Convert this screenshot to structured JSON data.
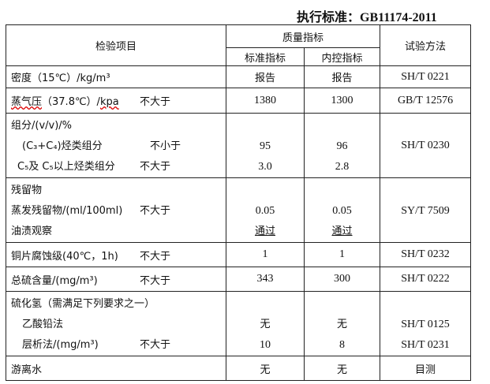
{
  "title": "执行标准：GB11174-2011",
  "header": {
    "item": "检验项目",
    "quality": "质量指标",
    "standard": "标准指标",
    "internal": "内控指标",
    "method": "试验方法"
  },
  "rows": {
    "density": {
      "label": "密度（15℃）/kg/m³",
      "standard": "报告",
      "internal": "报告",
      "method": "SH/T 0221"
    },
    "vapor": {
      "label_a": "蒸气压",
      "label_b": "（37.8℃）/",
      "label_c": "kpa",
      "cond": "不大于",
      "standard": "1380",
      "internal": "1300",
      "method": "GB/T 12576"
    },
    "composition": {
      "label": "组分/(v/v)/%",
      "sub1": "(C₃+C₄)烃类组分",
      "sub1_cond": "不小于",
      "sub1_standard": "95",
      "sub1_internal": "96",
      "sub2": "C₅及 C₅以上烃类组分",
      "sub2_cond": "不大于",
      "sub2_standard": "3.0",
      "sub2_internal": "2.8",
      "method": "SH/T 0230"
    },
    "residue": {
      "label": "残留物",
      "sub1": "蒸发残留物/(ml/100ml)",
      "sub1_cond": "不大于",
      "sub1_standard": "0.05",
      "sub1_internal": "0.05",
      "sub2": "油渍观察",
      "sub2_standard": "通过",
      "sub2_internal": "通过",
      "method": "SY/T 7509"
    },
    "copper": {
      "label": "铜片腐蚀级(40℃，1h)",
      "cond": "不大于",
      "standard": "1",
      "internal": "1",
      "method": "SH/T 0232"
    },
    "sulfur": {
      "label": "总硫含量/(mg/m³)",
      "cond": "不大于",
      "standard": "343",
      "internal": "300",
      "method": "SH/T 0222"
    },
    "h2s": {
      "label": "硫化氢（需满足下列要求之一）",
      "sub1": "乙酸铅法",
      "sub1_standard": "无",
      "sub1_internal": "无",
      "sub1_method": "SH/T 0125",
      "sub2": "层析法/(mg/m³)",
      "sub2_cond": "不大于",
      "sub2_standard": "10",
      "sub2_internal": "8",
      "sub2_method": "SH/T 0231"
    },
    "water": {
      "label": "游离水",
      "standard": "无",
      "internal": "无",
      "method": "目测"
    }
  }
}
